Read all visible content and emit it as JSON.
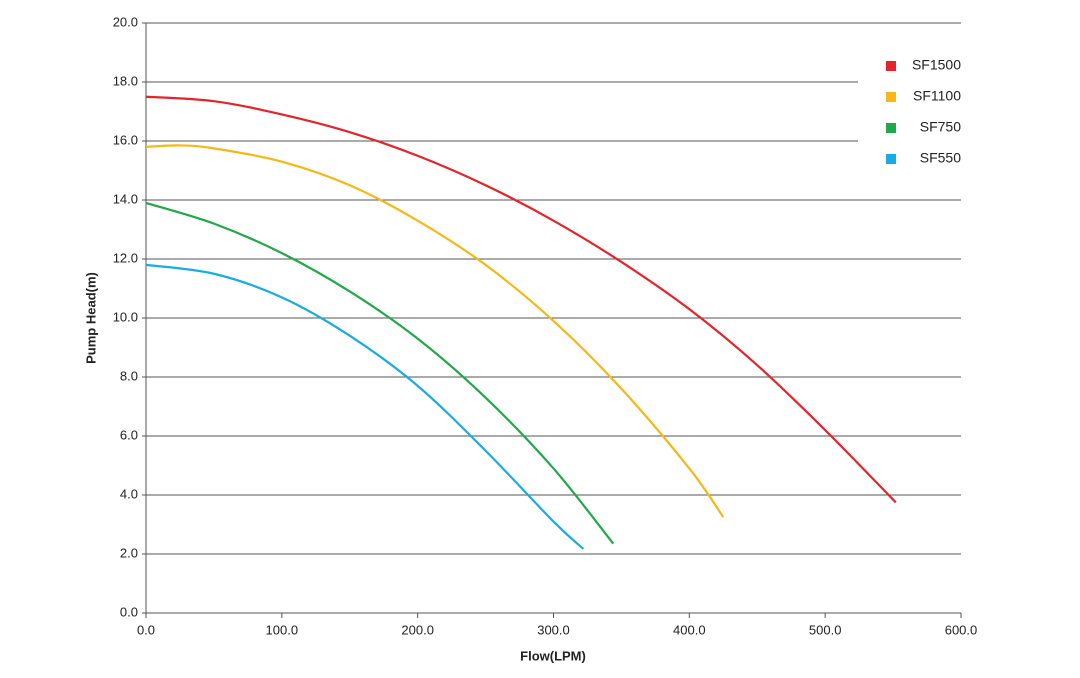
{
  "chart_data": {
    "type": "line",
    "x_label": "Flow(LPM)",
    "y_label": "Pump Head(m)",
    "xlim": [
      0,
      600
    ],
    "ylim": [
      0,
      20
    ],
    "xticks": [
      {
        "value": 0,
        "label": "0.0"
      },
      {
        "value": 100,
        "label": "100.0"
      },
      {
        "value": 200,
        "label": "200.0"
      },
      {
        "value": 300,
        "label": "300.0"
      },
      {
        "value": 400,
        "label": "400.0"
      },
      {
        "value": 500,
        "label": "500.0"
      },
      {
        "value": 600,
        "label": "600.0"
      }
    ],
    "yticks": [
      {
        "value": 0,
        "label": "0.0"
      },
      {
        "value": 2,
        "label": "2.0"
      },
      {
        "value": 4,
        "label": "4.0"
      },
      {
        "value": 6,
        "label": "6.0"
      },
      {
        "value": 8,
        "label": "8.0"
      },
      {
        "value": 10,
        "label": "10.0"
      },
      {
        "value": 12,
        "label": "12.0"
      },
      {
        "value": 14,
        "label": "14.0"
      },
      {
        "value": 16,
        "label": "16.0"
      },
      {
        "value": 18,
        "label": "18.0"
      },
      {
        "value": 20,
        "label": "20.0"
      }
    ],
    "grid": true,
    "legend": "top-right",
    "series": [
      {
        "name": "SF1500",
        "color": "#e3242b",
        "x": [
          0,
          50,
          100,
          150,
          200,
          250,
          300,
          350,
          400,
          450,
          500,
          552
        ],
        "values": [
          17.5,
          17.35,
          16.9,
          16.3,
          15.5,
          14.5,
          13.3,
          11.9,
          10.3,
          8.4,
          6.2,
          3.75
        ]
      },
      {
        "name": "SF1100",
        "color": "#f5b817",
        "x": [
          0,
          25,
          50,
          100,
          150,
          200,
          250,
          300,
          350,
          400,
          425
        ],
        "values": [
          15.8,
          15.85,
          15.75,
          15.3,
          14.5,
          13.3,
          11.8,
          9.9,
          7.6,
          4.9,
          3.25
        ]
      },
      {
        "name": "SF750",
        "color": "#22a84a",
        "x": [
          0,
          50,
          100,
          150,
          200,
          250,
          300,
          344
        ],
        "values": [
          13.9,
          13.2,
          12.2,
          10.9,
          9.3,
          7.3,
          4.9,
          2.35
        ]
      },
      {
        "name": "SF550",
        "color": "#1aabe3",
        "x": [
          0,
          50,
          100,
          150,
          200,
          250,
          300,
          322
        ],
        "values": [
          11.8,
          11.5,
          10.7,
          9.4,
          7.7,
          5.5,
          3.1,
          2.17
        ]
      }
    ]
  }
}
